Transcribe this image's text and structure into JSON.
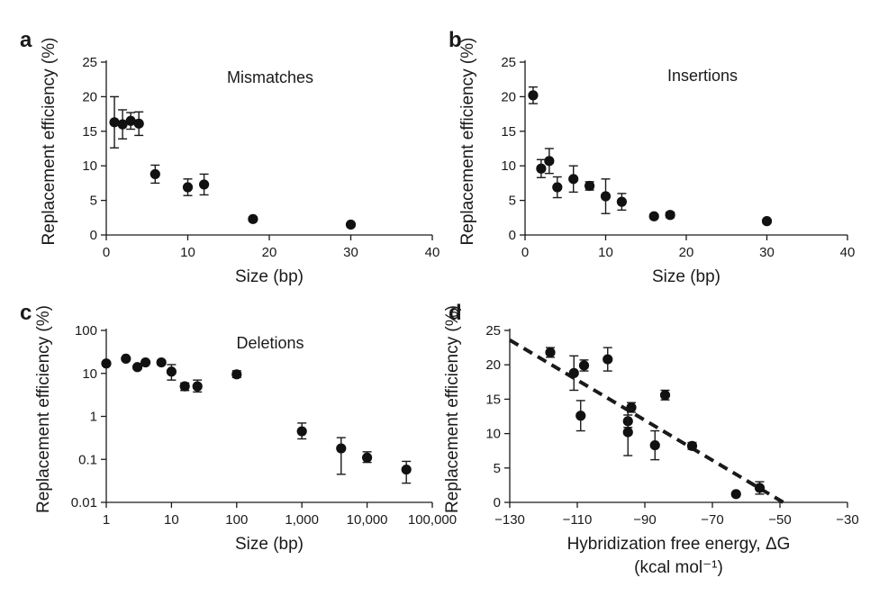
{
  "chart_data": [
    {
      "panel": "a",
      "type": "scatter",
      "title": "Mismatches",
      "xlabel": "Size (bp)",
      "ylabel": "Replacement efficiency (%)",
      "xlim": [
        0,
        40
      ],
      "ylim": [
        0,
        25
      ],
      "xticks": [
        "0",
        "10",
        "20",
        "30",
        "40"
      ],
      "yticks": [
        "0",
        "5",
        "10",
        "15",
        "20",
        "25"
      ],
      "grid": false,
      "points": [
        {
          "x": 1,
          "y": 16.3,
          "err": 3.7
        },
        {
          "x": 2,
          "y": 16.0,
          "err": 2.1
        },
        {
          "x": 3,
          "y": 16.5,
          "err": 1.2
        },
        {
          "x": 4,
          "y": 16.1,
          "err": 1.7
        },
        {
          "x": 6,
          "y": 8.8,
          "err": 1.3
        },
        {
          "x": 10,
          "y": 6.9,
          "err": 1.2
        },
        {
          "x": 12,
          "y": 7.3,
          "err": 1.5
        },
        {
          "x": 18,
          "y": 2.3,
          "err": 0.3
        },
        {
          "x": 30,
          "y": 1.5,
          "err": 0.2
        }
      ]
    },
    {
      "panel": "b",
      "type": "scatter",
      "title": "Insertions",
      "xlabel": "Size (bp)",
      "ylabel": "Replacement efficiency (%)",
      "xlim": [
        0,
        40
      ],
      "ylim": [
        0,
        25
      ],
      "xticks": [
        "0",
        "10",
        "20",
        "30",
        "40"
      ],
      "yticks": [
        "0",
        "5",
        "10",
        "15",
        "20",
        "25"
      ],
      "grid": false,
      "points": [
        {
          "x": 1,
          "y": 20.2,
          "err": 1.2
        },
        {
          "x": 2,
          "y": 9.6,
          "err": 1.3
        },
        {
          "x": 3,
          "y": 10.7,
          "err": 1.8
        },
        {
          "x": 4,
          "y": 6.9,
          "err": 1.5
        },
        {
          "x": 6,
          "y": 8.1,
          "err": 1.9
        },
        {
          "x": 8,
          "y": 7.1,
          "err": 0.6
        },
        {
          "x": 10,
          "y": 5.6,
          "err": 2.5
        },
        {
          "x": 12,
          "y": 4.8,
          "err": 1.2
        },
        {
          "x": 16,
          "y": 2.7,
          "err": 0.3
        },
        {
          "x": 18,
          "y": 2.9,
          "err": 0.4
        },
        {
          "x": 30,
          "y": 2.0,
          "err": 0.3
        }
      ]
    },
    {
      "panel": "c",
      "type": "scatter",
      "title": "Deletions",
      "xlabel": "Size (bp)",
      "ylabel": "Replacement efficiency (%)",
      "xscale": "log",
      "yscale": "log",
      "xlim": [
        1,
        100000
      ],
      "ylim": [
        0.01,
        100
      ],
      "xticks": [
        "1",
        "10",
        "100",
        "1,000",
        "10,000",
        "100,000"
      ],
      "yticks": [
        "0.01",
        "0.1",
        "1",
        "10",
        "100"
      ],
      "grid": false,
      "points": [
        {
          "x": 1,
          "y": 17,
          "lo": 17,
          "hi": 17
        },
        {
          "x": 2,
          "y": 22,
          "lo": 22,
          "hi": 22
        },
        {
          "x": 3,
          "y": 14,
          "lo": 12.5,
          "hi": 15.5
        },
        {
          "x": 4,
          "y": 18,
          "lo": 18,
          "hi": 18
        },
        {
          "x": 7,
          "y": 18,
          "lo": 16,
          "hi": 20
        },
        {
          "x": 10,
          "y": 11,
          "lo": 7,
          "hi": 16
        },
        {
          "x": 16,
          "y": 5,
          "lo": 4,
          "hi": 6
        },
        {
          "x": 25,
          "y": 5,
          "lo": 3.7,
          "hi": 7
        },
        {
          "x": 100,
          "y": 9.5,
          "lo": 8,
          "hi": 11.5
        },
        {
          "x": 1000,
          "y": 0.45,
          "lo": 0.3,
          "hi": 0.7
        },
        {
          "x": 4000,
          "y": 0.18,
          "lo": 0.045,
          "hi": 0.32
        },
        {
          "x": 10000,
          "y": 0.11,
          "lo": 0.085,
          "hi": 0.15
        },
        {
          "x": 40000,
          "y": 0.058,
          "lo": 0.028,
          "hi": 0.09
        }
      ]
    },
    {
      "panel": "d",
      "type": "scatter",
      "xlabel": "Hybridization free energy, ΔG",
      "xlabel_units": "(kcal mol⁻¹)",
      "ylabel": "Replacement efficiency (%)",
      "xlim": [
        -130,
        -30
      ],
      "ylim": [
        0,
        25
      ],
      "xticks": [
        "−130",
        "−110",
        "−90",
        "−70",
        "−50",
        "−30"
      ],
      "yticks": [
        "0",
        "5",
        "10",
        "15",
        "20",
        "25"
      ],
      "grid": false,
      "trendline": {
        "x1": -130,
        "y1": 23.6,
        "x2": -49,
        "y2": 0
      },
      "points": [
        {
          "x": -118,
          "y": 21.8,
          "err": 0.7
        },
        {
          "x": -111,
          "y": 18.8,
          "err": 2.5
        },
        {
          "x": -109,
          "y": 12.6,
          "err": 2.2
        },
        {
          "x": -108,
          "y": 19.9,
          "err": 0.8
        },
        {
          "x": -101,
          "y": 20.8,
          "err": 1.7
        },
        {
          "x": -94,
          "y": 13.8,
          "err": 0.7
        },
        {
          "x": -95,
          "y": 11.8,
          "err": 0.9
        },
        {
          "x": -95,
          "y": 10.2,
          "err": 3.4
        },
        {
          "x": -87,
          "y": 8.3,
          "err": 2.1
        },
        {
          "x": -84,
          "y": 15.6,
          "err": 0.7
        },
        {
          "x": -76,
          "y": 8.2,
          "err": 0.5
        },
        {
          "x": -63,
          "y": 1.2,
          "err": 0.2
        },
        {
          "x": -56,
          "y": 2.1,
          "err": 0.9
        }
      ]
    }
  ]
}
